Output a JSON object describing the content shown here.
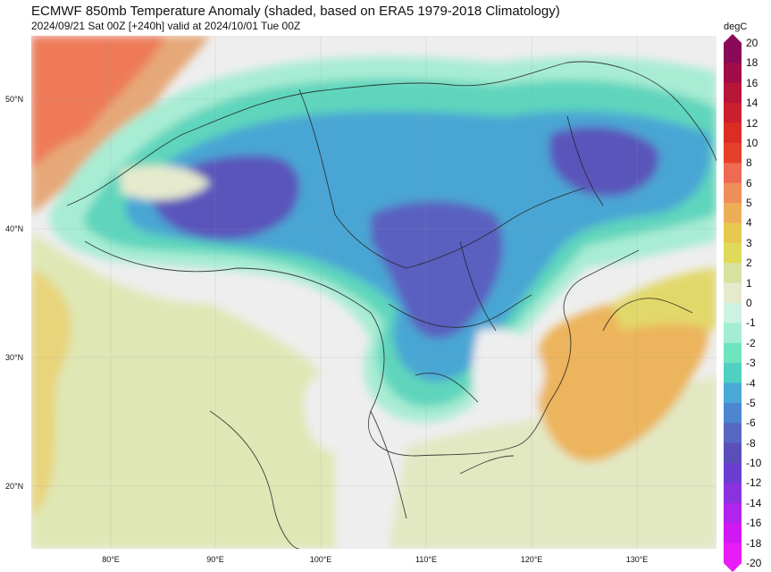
{
  "title": "ECMWF 850mb Temperature Anomaly (shaded, based on ERA5 1979-2018 Climatology)",
  "subtitle": "2024/09/21 Sat 00Z [+240h] valid at 2024/10/01 Tue 00Z",
  "map": {
    "lon_ticks": [
      "80°E",
      "90°E",
      "100°E",
      "110°E",
      "120°E",
      "130°E"
    ],
    "lat_ticks": [
      "50°N",
      "40°N",
      "30°N",
      "20°N"
    ]
  },
  "colorbar": {
    "unit": "degC",
    "labels": [
      "20",
      "18",
      "16",
      "14",
      "12",
      "10",
      "8",
      "6",
      "5",
      "4",
      "3",
      "2",
      "1",
      "0",
      "-1",
      "-2",
      "-3",
      "-4",
      "-5",
      "-6",
      "-8",
      "-10",
      "-12",
      "-14",
      "-16",
      "-18",
      "-20"
    ],
    "colors": {
      "pos": [
        "#8a0a5a",
        "#a10d48",
        "#b71639",
        "#cc1f2e",
        "#dc2d24",
        "#e6402a",
        "#ee6a52",
        "#f08e5a",
        "#edae58",
        "#e8c84f",
        "#e0da5a",
        "#d6e2a0",
        "#e6eacd"
      ],
      "zero": "#f0f0f0",
      "neg": [
        "#cdf2e2",
        "#a3eed3",
        "#6ee4bf",
        "#4fd0c0",
        "#4aa9d6",
        "#4b86cf",
        "#5668c2",
        "#5a4fb8",
        "#6a3ed0",
        "#8a32e0",
        "#b024ec",
        "#d018f2",
        "#e81cf6"
      ]
    }
  }
}
